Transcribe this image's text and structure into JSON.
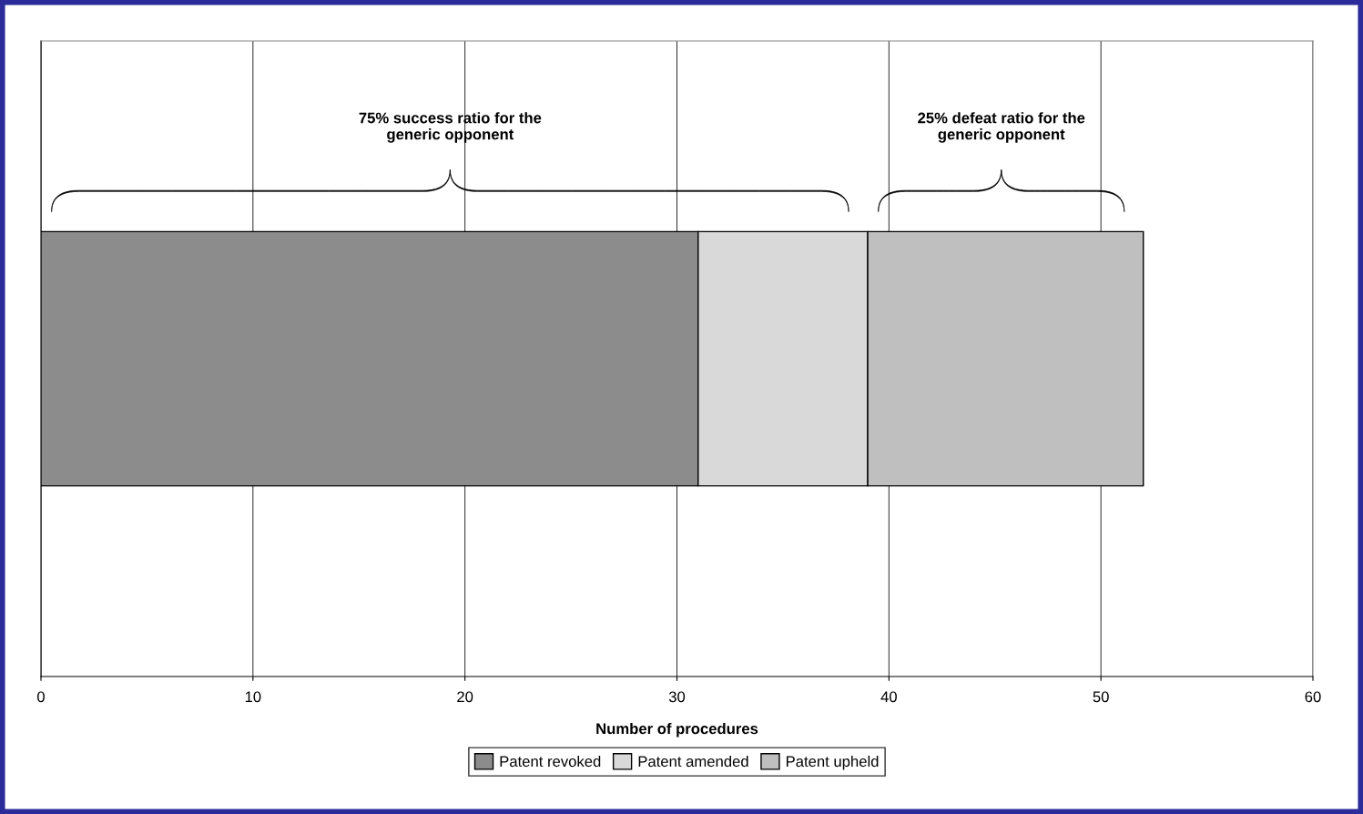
{
  "chart_data": {
    "type": "bar",
    "orientation": "horizontal",
    "stacked": true,
    "categories": [
      null
    ],
    "series": [
      {
        "name": "Patent revoked",
        "color": "#8c8c8c",
        "values": [
          31
        ]
      },
      {
        "name": "Patent amended",
        "color": "#d9d9d9",
        "values": [
          8
        ]
      },
      {
        "name": "Patent upheld",
        "color": "#bfbfbf",
        "values": [
          13
        ]
      }
    ],
    "xlabel": "Number of procedures",
    "xlim": [
      0,
      60
    ],
    "xticks": [
      0,
      10,
      20,
      30,
      40,
      50,
      60
    ],
    "grid": "x",
    "legend": "bottom",
    "annotations": [
      "75% success ratio for the\ngeneric opponent",
      "25% defeat ratio for the\ngeneric opponent"
    ]
  }
}
